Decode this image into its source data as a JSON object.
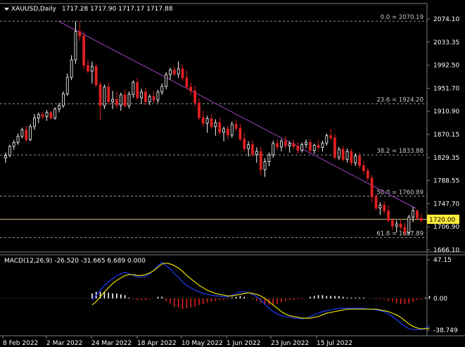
{
  "header": {
    "symbol_label": "XAUUSD,Daily",
    "ohlc_label": "1717.28 1717.90 1717.17 1717.88",
    "dropdown_icon": "triangle-down-icon"
  },
  "macd_header": {
    "label": "MACD(12,26,9) -26.520 -31.665 6.689 0.000"
  },
  "price_axis": {
    "ticks": [
      "2074.10",
      "2033.35",
      "1992.50",
      "1951.70",
      "1910.90",
      "1870.15",
      "1829.35",
      "1788.55",
      "1747.70",
      "1706.90",
      "1666.10"
    ],
    "current_price": "1720.00"
  },
  "macd_axis": {
    "ticks": [
      "47.15",
      "0.00",
      "-38.749"
    ]
  },
  "date_axis": {
    "labels": [
      "8 Feb 2022",
      "2 Mar 2022",
      "24 Mar 2022",
      "18 Apr 2022",
      "10 May 2022",
      "1 Jun 2022",
      "23 Jun 2022",
      "15 Jul 2022"
    ]
  },
  "fibonacci": [
    {
      "label": "0.0 = 2070.19"
    },
    {
      "label": "23.6 = 1924.20"
    },
    {
      "label": "38.2 = 1833.88"
    },
    {
      "label": "50.0 = 1760.89"
    },
    {
      "label": "61.8 = 1687.89"
    }
  ],
  "colors": {
    "background": "#000000",
    "bull_candle": "#ffffff",
    "bear_candle": "#e02020",
    "trendline": "#a040c0",
    "fib_line": "#c0c0c0",
    "current_price_line": "#d9c77a",
    "current_price_tag": "#ffeb3b",
    "macd_line": "#1e3cff",
    "signal_line": "#e8e000",
    "axis_text": "#ffffff",
    "border": "#808080"
  },
  "chart_data": {
    "type": "candlestick",
    "title": "XAUUSD,Daily",
    "ylim": [
      1666.1,
      2085
    ],
    "candles": [
      [
        1829,
        1838,
        1820,
        1833
      ],
      [
        1833,
        1852,
        1830,
        1849
      ],
      [
        1849,
        1860,
        1843,
        1856
      ],
      [
        1856,
        1872,
        1852,
        1867
      ],
      [
        1867,
        1882,
        1863,
        1878
      ],
      [
        1878,
        1885,
        1857,
        1861
      ],
      [
        1861,
        1888,
        1858,
        1884
      ],
      [
        1884,
        1906,
        1878,
        1899
      ],
      [
        1899,
        1909,
        1890,
        1905
      ],
      [
        1905,
        1910,
        1897,
        1902
      ],
      [
        1902,
        1913,
        1894,
        1909
      ],
      [
        1909,
        1912,
        1897,
        1899
      ],
      [
        1899,
        1918,
        1896,
        1915
      ],
      [
        1915,
        1926,
        1909,
        1921
      ],
      [
        1921,
        1946,
        1917,
        1942
      ],
      [
        1942,
        1978,
        1938,
        1971
      ],
      [
        1971,
        2010,
        1966,
        2002
      ],
      [
        2002,
        2070,
        1995,
        2052
      ],
      [
        2052,
        2070,
        2035,
        2044
      ],
      [
        2044,
        2052,
        1985,
        1992
      ],
      [
        1992,
        2002,
        1978,
        1982
      ],
      [
        1982,
        1999,
        1960,
        1990
      ],
      [
        1990,
        1995,
        1954,
        1958
      ],
      [
        1958,
        1963,
        1895,
        1921
      ],
      [
        1921,
        1958,
        1915,
        1954
      ],
      [
        1954,
        1962,
        1922,
        1928
      ],
      [
        1928,
        1947,
        1915,
        1932
      ],
      [
        1932,
        1946,
        1916,
        1922
      ],
      [
        1922,
        1944,
        1912,
        1940
      ],
      [
        1940,
        1950,
        1918,
        1921
      ],
      [
        1921,
        1946,
        1916,
        1941
      ],
      [
        1941,
        1966,
        1935,
        1962
      ],
      [
        1962,
        1970,
        1931,
        1935
      ],
      [
        1935,
        1951,
        1924,
        1945
      ],
      [
        1945,
        1953,
        1922,
        1928
      ],
      [
        1928,
        1941,
        1922,
        1937
      ],
      [
        1937,
        1946,
        1926,
        1931
      ],
      [
        1931,
        1949,
        1926,
        1945
      ],
      [
        1945,
        1960,
        1940,
        1955
      ],
      [
        1955,
        1980,
        1950,
        1976
      ],
      [
        1976,
        1988,
        1967,
        1984
      ],
      [
        1984,
        1990,
        1973,
        1977
      ],
      [
        1977,
        1999,
        1970,
        1986
      ],
      [
        1986,
        1993,
        1965,
        1970
      ],
      [
        1970,
        1983,
        1950,
        1954
      ],
      [
        1954,
        1962,
        1940,
        1947
      ],
      [
        1947,
        1956,
        1920,
        1926
      ],
      [
        1926,
        1934,
        1895,
        1900
      ],
      [
        1900,
        1912,
        1884,
        1890
      ],
      [
        1890,
        1903,
        1873,
        1898
      ],
      [
        1898,
        1906,
        1880,
        1884
      ],
      [
        1884,
        1897,
        1868,
        1891
      ],
      [
        1891,
        1900,
        1870,
        1874
      ],
      [
        1874,
        1884,
        1858,
        1880
      ],
      [
        1880,
        1886,
        1862,
        1869
      ],
      [
        1869,
        1893,
        1864,
        1888
      ],
      [
        1888,
        1896,
        1876,
        1881
      ],
      [
        1881,
        1889,
        1858,
        1862
      ],
      [
        1862,
        1873,
        1840,
        1845
      ],
      [
        1845,
        1858,
        1831,
        1852
      ],
      [
        1852,
        1860,
        1830,
        1835
      ],
      [
        1835,
        1847,
        1820,
        1840
      ],
      [
        1840,
        1848,
        1798,
        1808
      ],
      [
        1808,
        1828,
        1795,
        1822
      ],
      [
        1822,
        1838,
        1814,
        1834
      ],
      [
        1834,
        1859,
        1829,
        1854
      ],
      [
        1854,
        1862,
        1843,
        1848
      ],
      [
        1848,
        1862,
        1840,
        1858
      ],
      [
        1858,
        1868,
        1845,
        1850
      ],
      [
        1850,
        1858,
        1838,
        1854
      ],
      [
        1854,
        1861,
        1844,
        1849
      ],
      [
        1849,
        1856,
        1836,
        1842
      ],
      [
        1842,
        1856,
        1838,
        1852
      ],
      [
        1852,
        1861,
        1846,
        1856
      ],
      [
        1856,
        1862,
        1838,
        1842
      ],
      [
        1842,
        1854,
        1836,
        1851
      ],
      [
        1851,
        1860,
        1843,
        1847
      ],
      [
        1847,
        1859,
        1840,
        1855
      ],
      [
        1855,
        1872,
        1850,
        1868
      ],
      [
        1868,
        1880,
        1860,
        1864
      ],
      [
        1864,
        1871,
        1826,
        1830
      ],
      [
        1830,
        1848,
        1825,
        1844
      ],
      [
        1844,
        1850,
        1822,
        1826
      ],
      [
        1826,
        1845,
        1820,
        1840
      ],
      [
        1840,
        1845,
        1815,
        1820
      ],
      [
        1820,
        1837,
        1814,
        1832
      ],
      [
        1832,
        1838,
        1810,
        1815
      ],
      [
        1815,
        1822,
        1800,
        1806
      ],
      [
        1806,
        1811,
        1788,
        1793
      ],
      [
        1793,
        1798,
        1750,
        1760
      ],
      [
        1760,
        1765,
        1736,
        1740
      ],
      [
        1740,
        1750,
        1728,
        1745
      ],
      [
        1745,
        1752,
        1730,
        1735
      ],
      [
        1735,
        1744,
        1714,
        1718
      ],
      [
        1718,
        1722,
        1700,
        1708
      ],
      [
        1708,
        1718,
        1697,
        1712
      ],
      [
        1712,
        1721,
        1702,
        1706
      ],
      [
        1706,
        1714,
        1690,
        1697
      ],
      [
        1697,
        1728,
        1693,
        1724
      ],
      [
        1724,
        1742,
        1715,
        1735
      ],
      [
        1735,
        1738,
        1718,
        1722
      ],
      [
        1722,
        1730,
        1714,
        1718
      ]
    ],
    "macd_line": [
      -2,
      4,
      10,
      16,
      20,
      24,
      28,
      30,
      32,
      30,
      28,
      26,
      26,
      27,
      30,
      34,
      40,
      44,
      40,
      36,
      30,
      26,
      20,
      16,
      13,
      10,
      8,
      6,
      5,
      4,
      3,
      3,
      2,
      2,
      4,
      6,
      8,
      8,
      7,
      5,
      2,
      -2,
      -7,
      -12,
      -16,
      -19,
      -21,
      -22,
      -23,
      -24,
      -24,
      -25,
      -24,
      -22,
      -20,
      -18,
      -16,
      -15,
      -14,
      -13,
      -12,
      -12,
      -12,
      -12,
      -12,
      -12,
      -12,
      -13,
      -13,
      -14,
      -15,
      -16,
      -19,
      -22,
      -26,
      -30,
      -34,
      -37,
      -38,
      -38,
      -38,
      -36,
      -33
    ],
    "signal_line": [
      -8,
      -4,
      2,
      8,
      13,
      18,
      22,
      25,
      28,
      29,
      29,
      28,
      28,
      29,
      31,
      34,
      38,
      42,
      43,
      42,
      40,
      37,
      33,
      28,
      24,
      20,
      16,
      13,
      10,
      8,
      6,
      5,
      4,
      3,
      3,
      4,
      5,
      6,
      7,
      6,
      5,
      3,
      0,
      -4,
      -8,
      -12,
      -16,
      -19,
      -21,
      -22,
      -23,
      -24,
      -24,
      -24,
      -23,
      -22,
      -20,
      -18,
      -17,
      -16,
      -15,
      -14,
      -13,
      -13,
      -13,
      -13,
      -13,
      -13,
      -13,
      -13,
      -14,
      -15,
      -16,
      -18,
      -20,
      -23,
      -27,
      -31,
      -34,
      -36,
      -37,
      -37,
      -36
    ],
    "histogram": [
      6,
      8,
      8,
      8,
      7,
      6,
      6,
      5,
      4,
      1,
      -1,
      -2,
      -2,
      -2,
      -1,
      0,
      2,
      2,
      -3,
      -6,
      -10,
      -11,
      -13,
      -12,
      -11,
      -10,
      -8,
      -7,
      -5,
      -4,
      -3,
      -2,
      -2,
      -1,
      1,
      2,
      3,
      2,
      0,
      -1,
      -3,
      -5,
      -7,
      -8,
      -8,
      -7,
      -5,
      -3,
      -2,
      -2,
      -1,
      -1,
      0,
      2,
      3,
      4,
      4,
      3,
      3,
      3,
      3,
      2,
      1,
      1,
      1,
      1,
      1,
      0,
      0,
      -1,
      -1,
      -1,
      -3,
      -4,
      -6,
      -7,
      -7,
      -6,
      -4,
      -2,
      -1,
      1,
      3
    ],
    "macd_ylim": [
      -45,
      47.15
    ]
  }
}
